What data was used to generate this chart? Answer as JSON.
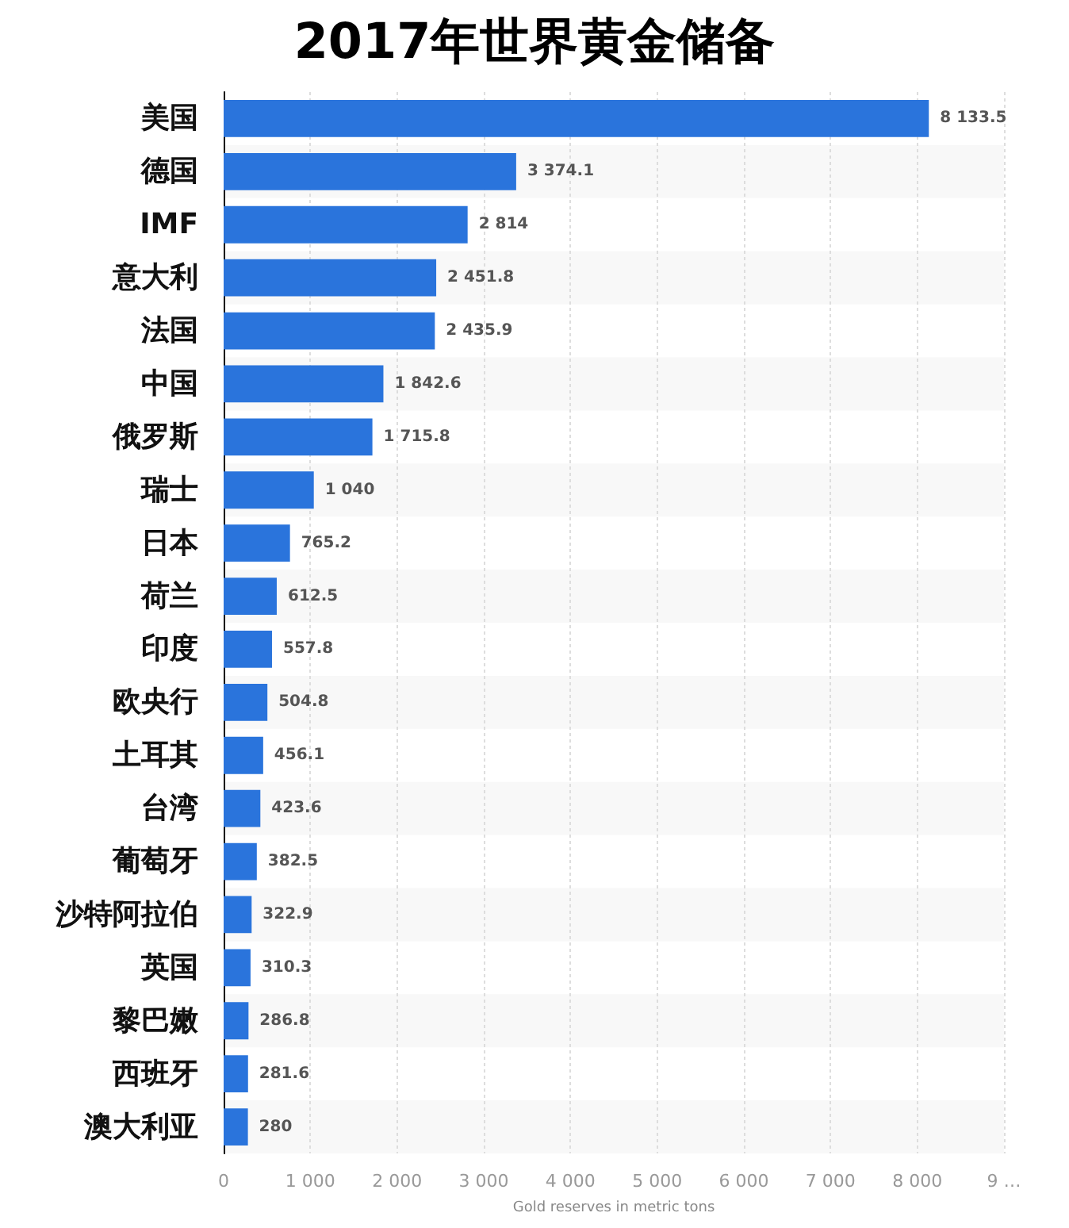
{
  "chart_data": {
    "type": "bar",
    "orientation": "horizontal",
    "title": "2017年世界黄金储备",
    "xlabel": "Gold reserves in metric tons",
    "categories": [
      "美国",
      "德国",
      "IMF",
      "意大利",
      "法国",
      "中国",
      "俄罗斯",
      "瑞士",
      "日本",
      "荷兰",
      "印度",
      "欧央行",
      "土耳其",
      "台湾",
      "葡萄牙",
      "沙特阿拉伯",
      "英国",
      "黎巴嫩",
      "西班牙",
      "澳大利亚"
    ],
    "values": [
      8133.5,
      3374.1,
      2814,
      2451.8,
      2435.9,
      1842.6,
      1715.8,
      1040,
      765.2,
      612.5,
      557.8,
      504.8,
      456.1,
      423.6,
      382.5,
      322.9,
      310.3,
      286.8,
      281.6,
      280
    ],
    "value_labels": [
      "8 133.5",
      "3 374.1",
      "2 814",
      "2 451.8",
      "2 435.9",
      "1 842.6",
      "1 715.8",
      "1 040",
      "765.2",
      "612.5",
      "557.8",
      "504.8",
      "456.1",
      "423.6",
      "382.5",
      "322.9",
      "310.3",
      "286.8",
      "281.6",
      "280"
    ],
    "color": "#2a74dc",
    "xlim": [
      0,
      9000
    ],
    "xticks": [
      0,
      {
        "value": 1000,
        "label": "1 000"
      },
      {
        "value": 2000,
        "label": "2 000"
      },
      {
        "value": 3000,
        "label": "3 000"
      },
      {
        "value": 4000,
        "label": "4 000"
      },
      {
        "value": 5000,
        "label": "5 000"
      },
      {
        "value": 6000,
        "label": "6 000"
      },
      {
        "value": 7000,
        "label": "7 000"
      },
      {
        "value": 8000,
        "label": "8 000"
      },
      {
        "value": 9000,
        "label": "9 …"
      }
    ],
    "grid": "x"
  }
}
